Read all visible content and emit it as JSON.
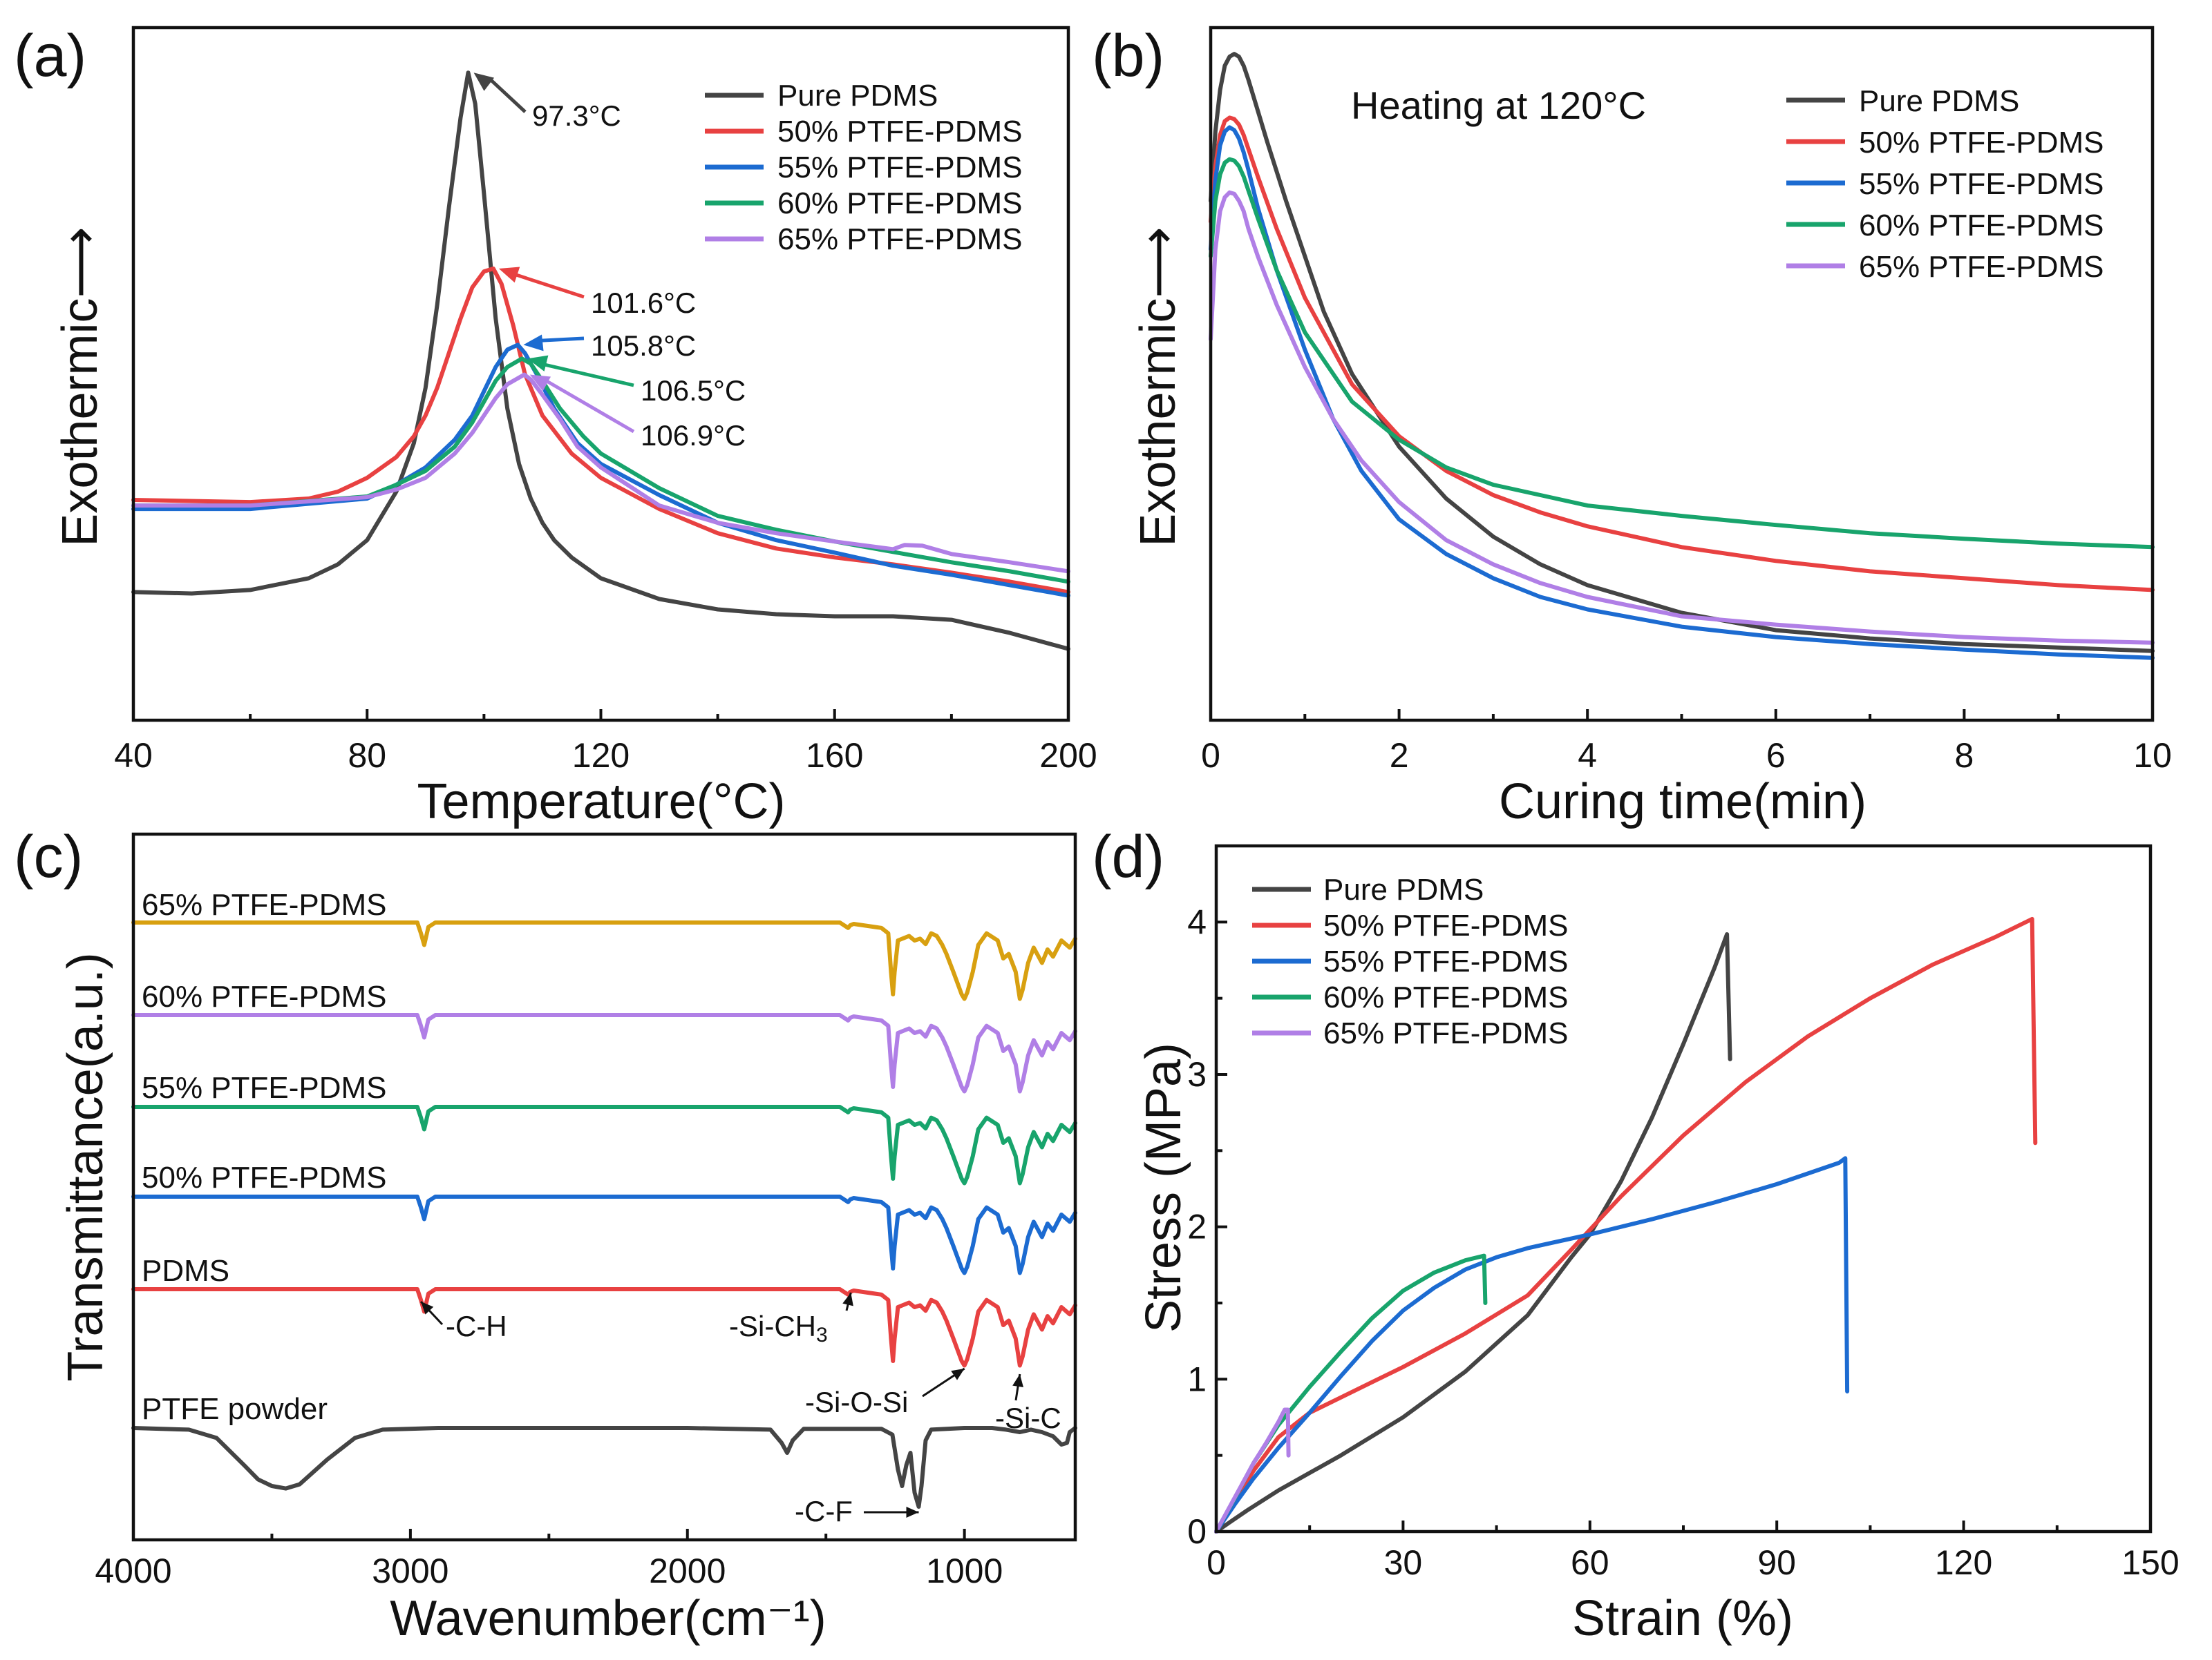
{
  "chart_data": [
    {
      "panel": "(a)",
      "type": "line",
      "xlabel": "Temperature(°C)",
      "ylabel": "Exothermic⟶",
      "xlim": [
        40,
        200
      ],
      "ylim": [
        0,
        100
      ],
      "xticks": [
        40,
        80,
        120,
        160,
        200
      ],
      "yticks_shown": false,
      "legend": "top-right",
      "series": [
        {
          "name": "Pure PDMS",
          "color": "#444444",
          "x": [
            40,
            50,
            60,
            70,
            75,
            80,
            85,
            88,
            90,
            92,
            94,
            96,
            97.3,
            98.5,
            100,
            102,
            104,
            106,
            108,
            110,
            112,
            115,
            120,
            130,
            140,
            150,
            160,
            170,
            180,
            190,
            200
          ],
          "y": [
            18.5,
            18.3,
            18.8,
            20.5,
            22.5,
            26,
            33,
            40,
            48,
            60,
            74,
            87,
            93.5,
            89,
            76,
            58,
            45,
            37,
            32,
            28.5,
            26,
            23.5,
            20.5,
            17.5,
            16,
            15.3,
            15,
            15,
            14.5,
            12.6,
            10.3
          ]
        },
        {
          "name": "50% PTFE-PDMS",
          "color": "#e84141",
          "x": [
            40,
            60,
            70,
            75,
            80,
            85,
            88,
            90,
            92,
            94,
            96,
            98,
            100,
            101.6,
            103,
            105,
            107,
            110,
            115,
            120,
            130,
            140,
            150,
            160,
            170,
            180,
            190,
            200
          ],
          "y": [
            31.8,
            31.5,
            32,
            33,
            35,
            38,
            41,
            44,
            48,
            53,
            58,
            62.5,
            64.8,
            65.2,
            63,
            57,
            50,
            44,
            38.5,
            35,
            30.5,
            27,
            24.8,
            23.5,
            22.5,
            21.3,
            20,
            18.5
          ]
        },
        {
          "name": "55% PTFE-PDMS",
          "color": "#1c6bd1",
          "x": [
            40,
            60,
            80,
            85,
            90,
            95,
            98,
            100,
            102,
            104,
            105.8,
            107,
            109,
            112,
            116,
            120,
            130,
            140,
            150,
            160,
            170,
            180,
            190,
            200
          ],
          "y": [
            30.5,
            30.5,
            32,
            34,
            36.5,
            40.5,
            44,
            47.5,
            51,
            53.5,
            54.2,
            53,
            50,
            45,
            40,
            37,
            32.5,
            28.5,
            26,
            24.2,
            22.3,
            21,
            19.5,
            18
          ]
        },
        {
          "name": "60% PTFE-PDMS",
          "color": "#18a46c",
          "x": [
            40,
            60,
            80,
            85,
            90,
            95,
            98,
            100,
            102,
            104,
            106.5,
            108,
            110,
            113,
            117,
            120,
            130,
            140,
            150,
            160,
            170,
            180,
            190,
            200
          ],
          "y": [
            31,
            31,
            32.3,
            34,
            36,
            39.5,
            43,
            46,
            49,
            51,
            52.2,
            51.5,
            49,
            45,
            41,
            38.5,
            33.5,
            29.5,
            27.5,
            25.8,
            24.3,
            22.8,
            21.5,
            20
          ]
        },
        {
          "name": "65% PTFE-PDMS",
          "color": "#b07fe6",
          "x": [
            40,
            60,
            80,
            85,
            90,
            95,
            98,
            100,
            102,
            104,
            106.9,
            108,
            110,
            113,
            116,
            120,
            130,
            140,
            150,
            160,
            170,
            172,
            175,
            180,
            190,
            200
          ],
          "y": [
            31,
            31,
            32.2,
            33.3,
            35,
            38.5,
            41.5,
            44,
            46.5,
            48.5,
            49.9,
            49.2,
            47,
            43.5,
            39.5,
            36.5,
            31,
            28.5,
            27,
            25.8,
            24.7,
            25.3,
            25.2,
            24,
            22.8,
            21.5
          ]
        }
      ],
      "annotations": [
        {
          "text": "97.3°C",
          "series": "Pure PDMS"
        },
        {
          "text": "101.6°C",
          "series": "50% PTFE-PDMS"
        },
        {
          "text": "105.8°C",
          "series": "55% PTFE-PDMS"
        },
        {
          "text": "106.5°C",
          "series": "60% PTFE-PDMS"
        },
        {
          "text": "106.9°C",
          "series": "65% PTFE-PDMS"
        }
      ]
    },
    {
      "panel": "(b)",
      "type": "line",
      "title": "Heating at 120°C",
      "xlabel": "Curing time(min)",
      "ylabel": "Exothermic⟶",
      "xlim": [
        0,
        10
      ],
      "ylim": [
        0,
        100
      ],
      "xticks": [
        0,
        2,
        4,
        6,
        8,
        10
      ],
      "yticks_shown": false,
      "legend": "top-right",
      "series": [
        {
          "name": "Pure PDMS",
          "color": "#444444",
          "x": [
            0,
            0.05,
            0.1,
            0.15,
            0.2,
            0.25,
            0.3,
            0.35,
            0.4,
            0.5,
            0.6,
            0.8,
            1,
            1.2,
            1.5,
            2,
            2.5,
            3,
            3.5,
            4,
            5,
            6,
            7,
            8,
            9,
            10
          ],
          "y": [
            75,
            85,
            91,
            94.5,
            95.8,
            96.2,
            95.8,
            94.5,
            92.5,
            88,
            83.5,
            75,
            67,
            59,
            50,
            39.5,
            32,
            26.5,
            22.5,
            19.5,
            15.5,
            13,
            11.8,
            11,
            10.5,
            10
          ]
        },
        {
          "name": "50% PTFE-PDMS",
          "color": "#e84141",
          "x": [
            0,
            0.05,
            0.1,
            0.15,
            0.2,
            0.25,
            0.3,
            0.35,
            0.4,
            0.5,
            0.7,
            1,
            1.5,
            2,
            2.5,
            3,
            3.5,
            4,
            5,
            6,
            7,
            8,
            9,
            10
          ],
          "y": [
            72,
            80,
            84.5,
            86.5,
            87,
            86.8,
            86,
            84.5,
            82.5,
            78.5,
            71,
            61,
            48.5,
            41,
            36,
            32.5,
            30,
            28,
            25,
            23,
            21.5,
            20.5,
            19.5,
            18.8
          ]
        },
        {
          "name": "55% PTFE-PDMS",
          "color": "#1c6bd1",
          "x": [
            0,
            0.05,
            0.1,
            0.15,
            0.2,
            0.25,
            0.3,
            0.35,
            0.4,
            0.5,
            0.7,
            1,
            1.3,
            1.6,
            2,
            2.5,
            3,
            3.5,
            4,
            5,
            6,
            7,
            8,
            9,
            10
          ],
          "y": [
            68,
            78,
            83,
            85,
            85.6,
            85.2,
            84,
            82,
            79.5,
            74,
            65,
            53.5,
            43.5,
            36,
            29,
            24,
            20.5,
            17.8,
            16,
            13.5,
            12,
            11,
            10.2,
            9.5,
            9
          ]
        },
        {
          "name": "60% PTFE-PDMS",
          "color": "#18a46c",
          "x": [
            0,
            0.05,
            0.1,
            0.15,
            0.2,
            0.25,
            0.3,
            0.35,
            0.4,
            0.5,
            0.7,
            1,
            1.5,
            2,
            2.5,
            3,
            3.5,
            4,
            5,
            6,
            7,
            8,
            9,
            10
          ],
          "y": [
            67,
            75,
            78.8,
            80.5,
            81,
            80.8,
            80,
            78.5,
            76.5,
            72.5,
            65,
            56,
            46,
            40.5,
            36.5,
            34,
            32.5,
            31,
            29.5,
            28.2,
            27,
            26.2,
            25.5,
            25
          ]
        },
        {
          "name": "65% PTFE-PDMS",
          "color": "#b07fe6",
          "x": [
            0,
            0.05,
            0.1,
            0.15,
            0.2,
            0.25,
            0.3,
            0.35,
            0.4,
            0.5,
            0.7,
            1,
            1.3,
            1.6,
            2,
            2.5,
            3,
            3.5,
            4,
            5,
            6,
            7,
            8,
            9,
            10
          ],
          "y": [
            55,
            68,
            73.5,
            75.5,
            76.2,
            76,
            75,
            73.5,
            71,
            67,
            60,
            51,
            43.5,
            37.5,
            31.5,
            26,
            22.5,
            19.8,
            17.8,
            15,
            13.8,
            12.8,
            12,
            11.5,
            11.2
          ]
        }
      ]
    },
    {
      "panel": "(c)",
      "type": "line",
      "xlabel": "Wavenumber(cm⁻¹)",
      "ylabel": "Transmittance(a.u.)",
      "xlim": [
        4000,
        600
      ],
      "xticks": [
        4000,
        3000,
        2000,
        1000
      ],
      "yticks_shown": false,
      "series_labels": [
        "65% PTFE-PDMS",
        "60% PTFE-PDMS",
        "55% PTFE-PDMS",
        "50% PTFE-PDMS",
        "PDMS",
        "PTFE powder"
      ],
      "series_colors": [
        "#d8a010",
        "#b07fe6",
        "#18a46c",
        "#1c6bd1",
        "#e84141",
        "#444444"
      ],
      "pdms_spectrum_depth_relative": {
        "x": [
          4000,
          3000,
          2975,
          2962,
          2950,
          2935,
          2910,
          2870,
          1450,
          1420,
          1412,
          1400,
          1300,
          1275,
          1265,
          1258,
          1252,
          1240,
          1200,
          1180,
          1160,
          1140,
          1120,
          1100,
          1080,
          1065,
          1040,
          1010,
          1000,
          990,
          970,
          950,
          920,
          880,
          860,
          840,
          815,
          800,
          790,
          770,
          750,
          720,
          700,
          680,
          650,
          620,
          600
        ],
        "y": [
          0,
          0,
          0,
          0.12,
          0.25,
          0.05,
          0,
          0,
          0,
          0.06,
          0.03,
          0.015,
          0.06,
          0.12,
          0.55,
          0.8,
          0.55,
          0.2,
          0.15,
          0.2,
          0.18,
          0.24,
          0.12,
          0.15,
          0.25,
          0.35,
          0.55,
          0.8,
          0.85,
          0.78,
          0.55,
          0.25,
          0.12,
          0.2,
          0.4,
          0.35,
          0.55,
          0.85,
          0.75,
          0.45,
          0.28,
          0.45,
          0.3,
          0.38,
          0.2,
          0.28,
          0.18
        ]
      },
      "ptfe_spectrum_depth_relative": {
        "x": [
          4000,
          3800,
          3700,
          3600,
          3550,
          3500,
          3450,
          3400,
          3300,
          3200,
          3100,
          2900,
          2000,
          1700,
          1660,
          1640,
          1620,
          1580,
          1300,
          1260,
          1240,
          1225,
          1210,
          1195,
          1180,
          1165,
          1155,
          1140,
          1120,
          1000,
          900,
          850,
          800,
          760,
          720,
          680,
          650,
          630,
          620,
          600
        ],
        "y": [
          0,
          0.02,
          0.12,
          0.45,
          0.62,
          0.7,
          0.73,
          0.68,
          0.38,
          0.12,
          0.02,
          0,
          0,
          0.02,
          0.18,
          0.3,
          0.15,
          0.01,
          0.01,
          0.08,
          0.5,
          0.7,
          0.45,
          0.3,
          0.78,
          0.95,
          0.7,
          0.15,
          0.02,
          0,
          0,
          0.02,
          0.05,
          0.02,
          0.05,
          0.1,
          0.2,
          0.18,
          0.05,
          0
        ]
      },
      "annotations": [
        "-C-H",
        "-Si-CH3",
        "-Si-O-Si",
        "-Si-C",
        "-C-F"
      ]
    },
    {
      "panel": "(d)",
      "type": "line",
      "xlabel": "Strain (%)",
      "ylabel": "Stress (MPa)",
      "xlim": [
        0,
        150
      ],
      "ylim": [
        0,
        4.5
      ],
      "xticks": [
        0,
        30,
        60,
        90,
        120,
        150
      ],
      "yticks": [
        0,
        1,
        2,
        3,
        4
      ],
      "legend": "top-left",
      "series": [
        {
          "name": "Pure PDMS",
          "color": "#444444",
          "x": [
            0,
            5,
            10,
            20,
            30,
            40,
            50,
            57,
            60,
            65,
            70,
            75,
            80,
            82,
            82,
            82.5
          ],
          "y": [
            0,
            0.14,
            0.27,
            0.5,
            0.75,
            1.05,
            1.42,
            1.8,
            1.95,
            2.3,
            2.72,
            3.2,
            3.7,
            3.92,
            3.92,
            3.1
          ]
        },
        {
          "name": "50% PTFE-PDMS",
          "color": "#e84141",
          "x": [
            0,
            3,
            6,
            10,
            15,
            20,
            25,
            30,
            40,
            50,
            57,
            65,
            75,
            85,
            95,
            105,
            115,
            125,
            131,
            131,
            131.5
          ],
          "y": [
            0,
            0.2,
            0.4,
            0.62,
            0.78,
            0.88,
            0.98,
            1.08,
            1.3,
            1.55,
            1.85,
            2.2,
            2.6,
            2.95,
            3.25,
            3.5,
            3.72,
            3.9,
            4.02,
            4.02,
            2.55
          ]
        },
        {
          "name": "55% PTFE-PDMS",
          "color": "#1c6bd1",
          "x": [
            0,
            3,
            6,
            10,
            15,
            20,
            25,
            30,
            35,
            40,
            45,
            50,
            60,
            70,
            80,
            90,
            100,
            101,
            101.3
          ],
          "y": [
            0,
            0.18,
            0.35,
            0.55,
            0.78,
            1.02,
            1.25,
            1.45,
            1.6,
            1.72,
            1.8,
            1.86,
            1.95,
            2.05,
            2.16,
            2.28,
            2.42,
            2.45,
            0.92
          ]
        },
        {
          "name": "60% PTFE-PDMS",
          "color": "#18a46c",
          "x": [
            0,
            3,
            6,
            10,
            15,
            20,
            25,
            30,
            35,
            40,
            43,
            43,
            43.2
          ],
          "y": [
            0,
            0.22,
            0.45,
            0.7,
            0.95,
            1.18,
            1.4,
            1.58,
            1.7,
            1.78,
            1.81,
            1.81,
            1.5
          ]
        },
        {
          "name": "65% PTFE-PDMS",
          "color": "#b07fe6",
          "x": [
            0,
            2,
            4,
            6,
            8,
            10,
            11,
            11.5,
            11.6
          ],
          "y": [
            0,
            0.15,
            0.3,
            0.45,
            0.58,
            0.72,
            0.8,
            0.8,
            0.5
          ]
        }
      ]
    }
  ]
}
